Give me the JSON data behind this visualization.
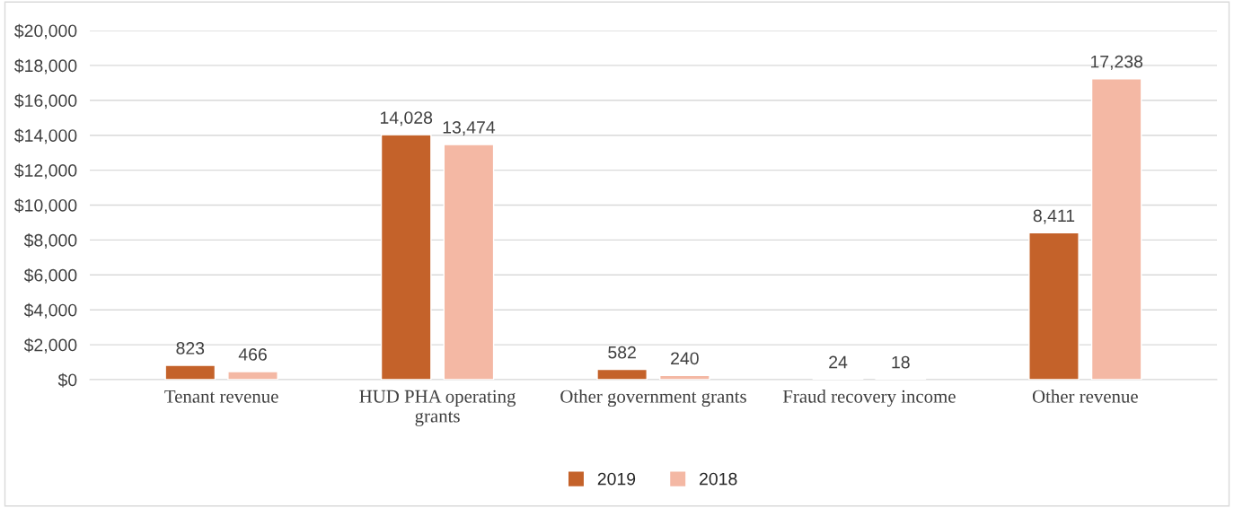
{
  "chart_data": {
    "type": "bar",
    "categories": [
      "Tenant revenue",
      "HUD PHA operating\ngrants",
      "Other government grants",
      "Fraud recovery income",
      "Other revenue"
    ],
    "series": [
      {
        "name": "2019",
        "color": "#c4622a",
        "values": [
          823,
          14028,
          582,
          24,
          8411
        ],
        "value_labels": [
          "823",
          "14,028",
          "582",
          "24",
          "8,411"
        ]
      },
      {
        "name": "2018",
        "color": "#f4b8a4",
        "values": [
          466,
          13474,
          240,
          18,
          17238
        ],
        "value_labels": [
          "466",
          "13,474",
          "240",
          "18",
          "17,238"
        ]
      }
    ],
    "ylim": [
      0,
      20000
    ],
    "yticks": [
      {
        "value": 0,
        "label": "$0"
      },
      {
        "value": 2000,
        "label": "$2,000"
      },
      {
        "value": 4000,
        "label": "$4,000"
      },
      {
        "value": 6000,
        "label": "$6,000"
      },
      {
        "value": 8000,
        "label": "$8,000"
      },
      {
        "value": 10000,
        "label": "$10,000"
      },
      {
        "value": 12000,
        "label": "$12,000"
      },
      {
        "value": 14000,
        "label": "$14,000"
      },
      {
        "value": 16000,
        "label": "$16,000"
      },
      {
        "value": 18000,
        "label": "$18,000"
      },
      {
        "value": 20000,
        "label": "$20,000"
      }
    ],
    "grid": "y",
    "legend": "bottom"
  }
}
